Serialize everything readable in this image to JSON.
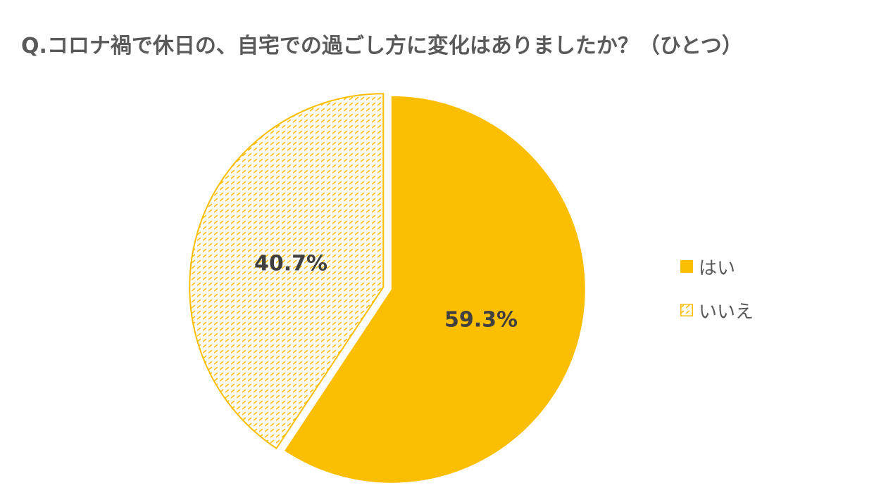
{
  "title": "Q.コロナ禍で休日の、自宅での過ごし方に変化はありましたか？（ひとつ）",
  "colors": {
    "yes": "#FBBE00",
    "no_pattern": "#FBBE00",
    "label_text": "#404040"
  },
  "chart_data": {
    "type": "pie",
    "title": "Q.コロナ禍で休日の、自宅での過ごし方に変化はありましたか？（ひとつ）",
    "categories": [
      "はい",
      "いいえ"
    ],
    "values": [
      59.3,
      40.7
    ],
    "labels": [
      "59.3%",
      "40.7%"
    ],
    "legend_position": "right",
    "start_angle": "top, clockwise",
    "series_styles": [
      "solid",
      "dashed-hatch"
    ]
  },
  "legend": {
    "items": [
      {
        "label": "はい",
        "style": "solid"
      },
      {
        "label": "いいえ",
        "style": "pattern"
      }
    ]
  }
}
